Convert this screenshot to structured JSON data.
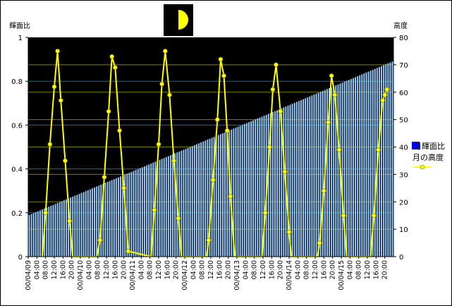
{
  "chart_data": {
    "type": "bar+line",
    "y_left_label": "輝面比",
    "y_right_label": "高度",
    "ylim_left": [
      0,
      1
    ],
    "ylim_right": [
      0,
      80
    ],
    "y_left_ticks": [
      "0",
      "0.2",
      "0.4",
      "0.6",
      "0.8",
      "1"
    ],
    "y_right_ticks": [
      "0",
      "10",
      "20",
      "30",
      "40",
      "50",
      "60",
      "70",
      "80"
    ],
    "x_tick_labels": [
      "00/04/09",
      "04:00",
      "08:00",
      "12:00",
      "16:00",
      "20:00",
      "00/04/10",
      "04:00",
      "08:00",
      "12:00",
      "16:00",
      "20:00",
      "00/04/11",
      "04:00",
      "08:00",
      "12:00",
      "16:00",
      "20:00",
      "00/04/12",
      "04:00",
      "08:00",
      "12:00",
      "16:00",
      "20:00",
      "00/04/13",
      "04:00",
      "08:00",
      "12:00",
      "16:00",
      "20:00",
      "00/04/14",
      "04:00",
      "08:00",
      "12:00",
      "16:00",
      "20:00",
      "00/04/15",
      "04:00",
      "08:00",
      "12:00",
      "16:00",
      "20:00"
    ],
    "series": [
      {
        "name": "月輝面比",
        "kind": "bar",
        "color": "#99ccff",
        "start_value": 0.19,
        "end_value": 0.89,
        "bar_count": 168
      },
      {
        "name": "月の高度",
        "kind": "line",
        "color": "#ffff00",
        "unit_hours": true,
        "points": [
          [
            6.5,
            0
          ],
          [
            8,
            16
          ],
          [
            10,
            41
          ],
          [
            12,
            62
          ],
          [
            13.5,
            75
          ],
          [
            15,
            57
          ],
          [
            17,
            35
          ],
          [
            19,
            13
          ],
          [
            20.5,
            0
          ],
          [
            31.5,
            0
          ],
          [
            33,
            6
          ],
          [
            35,
            29
          ],
          [
            37,
            53
          ],
          [
            38.5,
            73
          ],
          [
            40,
            69
          ],
          [
            42,
            46
          ],
          [
            44,
            25
          ],
          [
            46,
            2
          ],
          [
            56.5,
            0
          ],
          [
            58,
            17
          ],
          [
            60,
            41
          ],
          [
            61.5,
            63
          ],
          [
            63,
            75
          ],
          [
            65,
            59
          ],
          [
            67,
            35
          ],
          [
            69,
            14
          ],
          [
            70.5,
            0
          ],
          [
            82,
            0
          ],
          [
            83,
            6
          ],
          [
            85,
            28
          ],
          [
            87,
            50
          ],
          [
            88.5,
            72
          ],
          [
            90,
            66
          ],
          [
            91.5,
            46
          ],
          [
            93,
            22
          ],
          [
            95,
            0
          ],
          [
            107.5,
            0
          ],
          [
            109,
            16
          ],
          [
            111,
            40
          ],
          [
            112.5,
            61
          ],
          [
            114,
            70
          ],
          [
            116,
            53
          ],
          [
            118,
            31
          ],
          [
            120,
            9
          ],
          [
            121,
            0
          ],
          [
            133,
            0
          ],
          [
            134,
            5
          ],
          [
            136,
            24
          ],
          [
            138,
            49
          ],
          [
            139.5,
            66
          ],
          [
            141,
            59
          ],
          [
            143,
            39
          ],
          [
            145,
            15
          ],
          [
            146.5,
            0
          ],
          [
            157.5,
            0
          ],
          [
            159,
            15
          ],
          [
            161,
            39
          ],
          [
            163,
            57
          ],
          [
            164,
            59
          ],
          [
            165,
            61
          ]
        ]
      }
    ],
    "colors": {
      "plot_background": "#000000",
      "bar": "#99ccff",
      "line": "#ffff00",
      "marker": "#ffff00",
      "grid_yellow": "#808000",
      "grid_cyan": "#008080"
    }
  },
  "moon_icon": "half-moon-icon"
}
